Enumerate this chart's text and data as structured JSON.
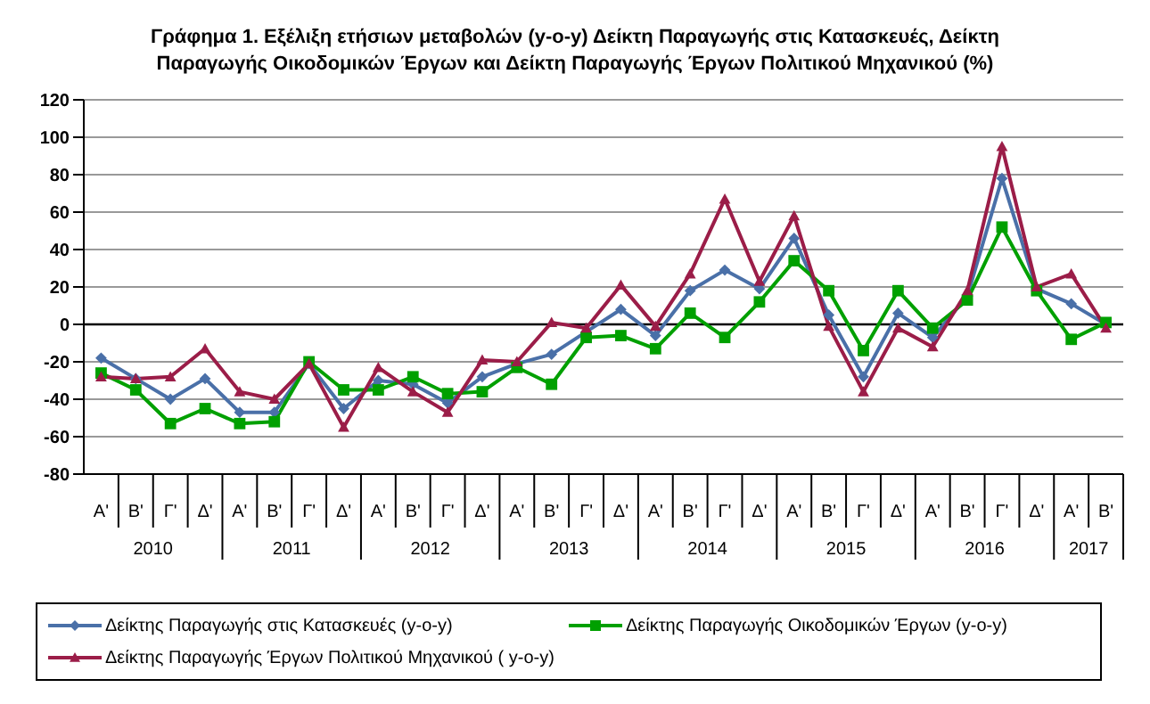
{
  "chart_data": {
    "type": "line",
    "title": "Γράφημα 1. Εξέλιξη ετήσιων μεταβολών (y-o-y) Δείκτη Παραγωγής στις Κατασκευές, Δείκτη Παραγωγής Οικοδομικών Έργων και  Δείκτη Παραγωγής Έργων Πολιτικού  Μηχανικού (%)",
    "categories": [
      "Α'",
      "Β'",
      "Γ'",
      "Δ'",
      "Α'",
      "Β'",
      "Γ'",
      "Δ'",
      "Α'",
      "Β'",
      "Γ'",
      "Δ'",
      "Α'",
      "Β'",
      "Γ'",
      "Δ'",
      "Α'",
      "Β'",
      "Γ'",
      "Δ'",
      "Α'",
      "Β'",
      "Γ'",
      "Δ'",
      "Α'",
      "Β'",
      "Γ'",
      "Δ'",
      "Α'",
      "Β'"
    ],
    "annotations": [
      "2010",
      "2011",
      "2012",
      "2013",
      "2014",
      "2015",
      "2016",
      "2017"
    ],
    "series": [
      {
        "name": "Δείκτης Παραγωγής στις Κατασκευές (y-o-y)",
        "color": "#4a70a8",
        "marker": "diamond",
        "values": [
          -18,
          -29,
          -40,
          -29,
          -47,
          -47,
          -21,
          -45,
          -30,
          -32,
          -42,
          -28,
          -21,
          -16,
          -4,
          8,
          -6,
          18,
          29,
          19,
          46,
          5,
          -28,
          6,
          -7,
          15,
          78,
          19,
          11,
          0
        ]
      },
      {
        "name": "Δείκτης Παραγωγής Οικοδομικών Έργων (y-o-y)",
        "color": "#00a000",
        "marker": "square",
        "values": [
          -26,
          -35,
          -53,
          -45,
          -53,
          -52,
          -20,
          -35,
          -35,
          -28,
          -37,
          -36,
          -23,
          -32,
          -7,
          -6,
          -13,
          6,
          -7,
          12,
          34,
          18,
          -14,
          18,
          -2,
          13,
          52,
          18,
          -8,
          1
        ]
      },
      {
        "name": "Δείκτης Παραγωγής Έργων Πολιτικού Μηχανικού ( y-o-y)",
        "color": "#9b1d48",
        "marker": "triangle",
        "values": [
          -28,
          -29,
          -28,
          -13,
          -36,
          -40,
          -21,
          -55,
          -23,
          -36,
          -47,
          -19,
          -20,
          1,
          -2,
          21,
          -1,
          27,
          67,
          23,
          58,
          -1,
          -36,
          -2,
          -12,
          18,
          95,
          20,
          27,
          -2
        ]
      }
    ],
    "ylim": [
      -80,
      120
    ],
    "yticks": [
      -80,
      -60,
      -40,
      -20,
      0,
      20,
      40,
      60,
      80,
      100,
      120
    ],
    "ref_lines": [
      {
        "axis": "y",
        "value": 0,
        "color": "#000000"
      }
    ],
    "grid": "y",
    "legend": "bottom",
    "line_style": "solid"
  }
}
